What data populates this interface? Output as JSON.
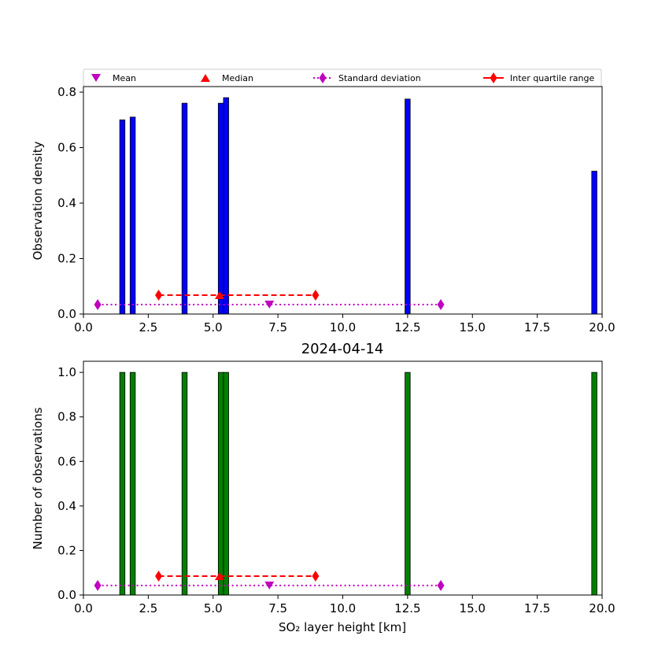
{
  "colors": {
    "density_bars": "#0000ff",
    "count_bars": "#008000",
    "mean": "#bf00bf",
    "median": "#ff0000",
    "std": "#bf00bf",
    "iqr": "#ff0000"
  },
  "legend": {
    "mean": "Mean",
    "median": "Median",
    "std": "Standard deviation",
    "iqr": "Inter quartile range"
  },
  "chart_data": [
    {
      "type": "bar",
      "ylabel": "Observation density",
      "xlim": [
        0,
        20
      ],
      "ylim": [
        0,
        0.82
      ],
      "xticks": [
        "0.0",
        "2.5",
        "5.0",
        "7.5",
        "10.0",
        "12.5",
        "15.0",
        "17.5",
        "20.0"
      ],
      "yticks": [
        "0.0",
        "0.2",
        "0.4",
        "0.6",
        "0.8"
      ],
      "bar_width": 0.2,
      "bars": [
        {
          "x": 1.5,
          "y": 0.7
        },
        {
          "x": 1.9,
          "y": 0.71
        },
        {
          "x": 3.9,
          "y": 0.76
        },
        {
          "x": 5.3,
          "y": 0.76
        },
        {
          "x": 5.5,
          "y": 0.78
        },
        {
          "x": 12.5,
          "y": 0.775
        },
        {
          "x": 19.7,
          "y": 0.515
        }
      ],
      "mean": {
        "x": 7.17,
        "y": 0.034
      },
      "median": {
        "x": 5.25,
        "y": 0.068
      },
      "std": {
        "x": [
          0.55,
          13.78
        ],
        "y": 0.034
      },
      "iqr": {
        "x": [
          2.9,
          8.95
        ],
        "y": 0.068
      }
    },
    {
      "type": "bar",
      "title": "2024-04-14",
      "xlabel": "SO₂ layer height [km]",
      "ylabel": "Number of observations",
      "xlim": [
        0,
        20
      ],
      "ylim": [
        0,
        1.05
      ],
      "xticks": [
        "0.0",
        "2.5",
        "5.0",
        "7.5",
        "10.0",
        "12.5",
        "15.0",
        "17.5",
        "20.0"
      ],
      "yticks": [
        "0.0",
        "0.2",
        "0.4",
        "0.6",
        "0.8",
        "1.0"
      ],
      "bar_width": 0.2,
      "bars": [
        {
          "x": 1.5,
          "y": 1.0
        },
        {
          "x": 1.9,
          "y": 1.0
        },
        {
          "x": 3.9,
          "y": 1.0
        },
        {
          "x": 5.3,
          "y": 1.0
        },
        {
          "x": 5.5,
          "y": 1.0
        },
        {
          "x": 12.5,
          "y": 1.0
        },
        {
          "x": 19.7,
          "y": 1.0
        }
      ],
      "mean": {
        "x": 7.17,
        "y": 0.043
      },
      "median": {
        "x": 5.25,
        "y": 0.085
      },
      "std": {
        "x": [
          0.55,
          13.78
        ],
        "y": 0.043
      },
      "iqr": {
        "x": [
          2.9,
          8.95
        ],
        "y": 0.085
      }
    }
  ]
}
